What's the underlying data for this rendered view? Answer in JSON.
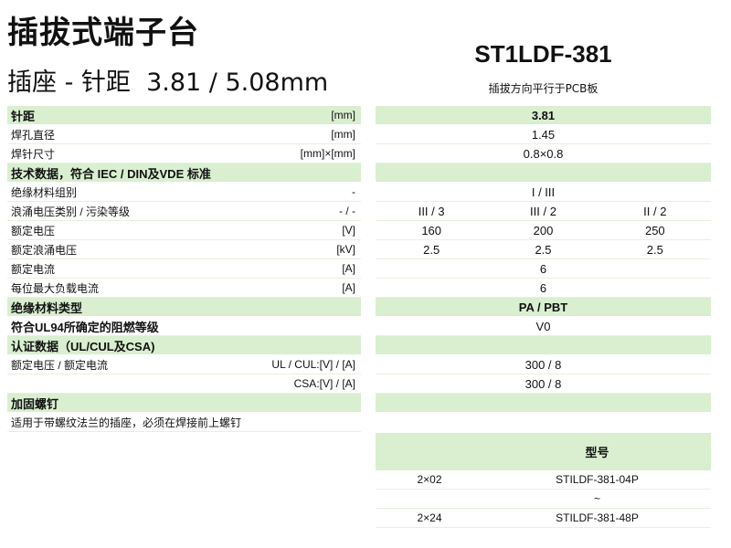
{
  "header": {
    "title": "插拔式端子台",
    "subtitle": "插座 - 针距  3.81 / 5.08mm",
    "model": "ST1LDF-381",
    "model_note": "插拔方向平行于PCB板"
  },
  "colors": {
    "section_bg": "#d9efd0",
    "divider": "#e4f2de"
  },
  "specs": [
    {
      "label": "针距",
      "unit": "[mm]",
      "header": true,
      "values": [
        "3.81"
      ]
    },
    {
      "label": "焊孔直径",
      "unit": "[mm]",
      "values": [
        "1.45"
      ]
    },
    {
      "label": "焊针尺寸",
      "unit": "[mm]×[mm]",
      "values": [
        "0.8×0.8"
      ]
    },
    {
      "label": "技术数据，符合 IEC / DIN及VDE 标准",
      "unit": "",
      "header": true,
      "values": [
        ""
      ]
    },
    {
      "label": "绝缘材料组别",
      "unit": "-",
      "values": [
        "I / III"
      ]
    },
    {
      "label": "浪涌电压类别 / 污染等级",
      "unit": "- / -",
      "values": [
        "III / 3",
        "III / 2",
        "II / 2"
      ]
    },
    {
      "label": "额定电压",
      "unit": "[V]",
      "values": [
        "160",
        "200",
        "250"
      ]
    },
    {
      "label": "额定浪涌电压",
      "unit": "[kV]",
      "values": [
        "2.5",
        "2.5",
        "2.5"
      ]
    },
    {
      "label": "额定电流",
      "unit": "[A]",
      "values": [
        "6"
      ]
    },
    {
      "label": "每位最大负载电流",
      "unit": "[A]",
      "values": [
        "6"
      ]
    },
    {
      "label": "绝缘材料类型",
      "unit": "",
      "header": true,
      "values": [
        "PA / PBT"
      ]
    },
    {
      "label": "符合UL94所确定的阻燃等级",
      "unit": "",
      "bold": true,
      "values": [
        "V0"
      ]
    },
    {
      "label": "认证数据（UL/CUL及CSA)",
      "unit": "",
      "header": true,
      "values": [
        ""
      ]
    },
    {
      "label": "额定电压 / 额定电流",
      "unit": "UL / CUL:[V] / [A]",
      "values": [
        "300 / 8"
      ]
    },
    {
      "label": "",
      "unit": "CSA:[V] / [A]",
      "values": [
        "300 / 8"
      ]
    },
    {
      "label": "加固螺钉",
      "unit": "",
      "header": true,
      "values": [
        ""
      ]
    },
    {
      "label": "适用于带螺纹法兰的插座，必须在焊接前上螺钉",
      "unit": "",
      "values": null
    }
  ],
  "models": {
    "header": [
      "",
      "型号"
    ],
    "rows": [
      [
        "2×02",
        "STILDF-381-04P"
      ],
      [
        "",
        "~"
      ],
      [
        "2×24",
        "STILDF-381-48P"
      ]
    ]
  }
}
